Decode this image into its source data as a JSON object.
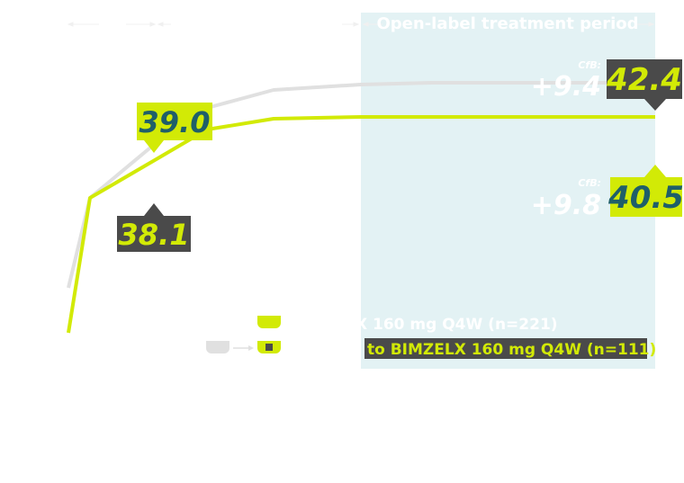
{
  "chart_data": {
    "type": "line",
    "title": "",
    "xlabel": "",
    "ylabel": "",
    "period_label": "Open-label treatment period",
    "series": [
      {
        "name": "",
        "color": "#d2ea06",
        "values": [
          28.5,
          36.0,
          38.1,
          39.8,
          40.4,
          40.5,
          40.5,
          40.5,
          40.5,
          40.5
        ],
        "callouts": [
          {
            "label": "38.1",
            "point_index": 2,
            "style": "dark"
          },
          {
            "label": "40.5",
            "point_index": 9,
            "style": "lime"
          }
        ],
        "cfb_label": "CfB:",
        "cfb_value": "+9.8"
      },
      {
        "name": "",
        "color": "#e0e0e0",
        "values": [
          31.0,
          36.0,
          39.0,
          41.0,
          42.0,
          42.3,
          42.4,
          42.4,
          42.4,
          42.4
        ],
        "callouts": [
          {
            "label": "39.0",
            "point_index": 2,
            "style": "lime"
          },
          {
            "label": "42.4",
            "point_index": 9,
            "style": "dark"
          }
        ],
        "cfb_label": "CfB:",
        "cfb_value": "+9.4"
      }
    ],
    "legend": [
      {
        "text": "X 160 mg Q4W (n=221)",
        "symbol": "lime"
      },
      {
        "text": "to BIMZELX 160 mg Q4W (n=111)",
        "symbol": "grey-to-lime"
      }
    ],
    "colors": {
      "lime": "#d2ea06",
      "grey": "#e0e0e0",
      "dark": "#4a4a4a",
      "teal_text": "#1f5f69",
      "period_bg": "#e3f2f4"
    }
  }
}
